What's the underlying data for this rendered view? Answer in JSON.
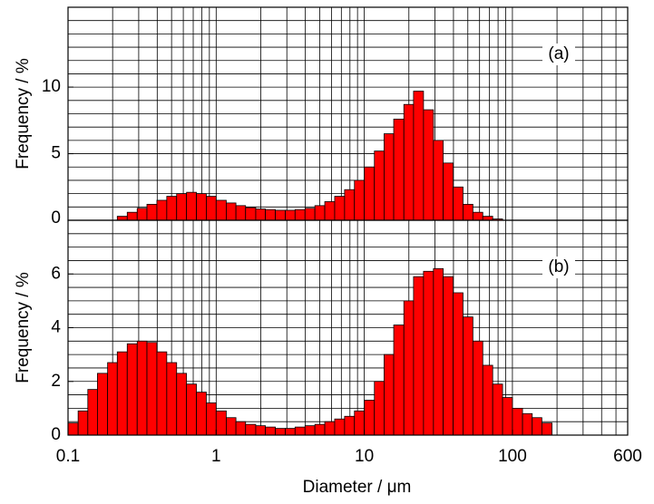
{
  "chart_data": [
    {
      "type": "histogram",
      "xscale": "log",
      "xlim": [
        0.1,
        600
      ],
      "ylim": [
        0,
        16
      ],
      "ylabel": "Frequency / %",
      "annotation": "(a)",
      "color": "#ff0000",
      "yticks": [
        0,
        5,
        10
      ],
      "ygrid": [
        1,
        2,
        3,
        4,
        5,
        6,
        7,
        8,
        9,
        10,
        11,
        12,
        13,
        14,
        15
      ],
      "xgrid": [
        0.2,
        0.3,
        0.4,
        0.5,
        0.6,
        0.7,
        0.8,
        0.9,
        1,
        2,
        3,
        4,
        5,
        6,
        7,
        8,
        9,
        10,
        20,
        30,
        40,
        50,
        60,
        70,
        80,
        90,
        100,
        200,
        300,
        400,
        500
      ],
      "bins": [
        0.1,
        0.117,
        0.136,
        0.158,
        0.185,
        0.215,
        0.251,
        0.293,
        0.341,
        0.398,
        0.464,
        0.541,
        0.631,
        0.736,
        0.858,
        1,
        1.17,
        1.36,
        1.58,
        1.85,
        2.15,
        2.51,
        2.93,
        3.41,
        3.98,
        4.64,
        5.41,
        6.31,
        7.36,
        8.58,
        10,
        11.7,
        13.6,
        15.8,
        18.5,
        21.5,
        25.1,
        29.3,
        34.1,
        39.8,
        46.4,
        54.1,
        63.1,
        73.6,
        85.8,
        100,
        117,
        136,
        158,
        185
      ],
      "values": [
        0,
        0,
        0,
        0,
        0,
        0.3,
        0.6,
        0.9,
        1.2,
        1.5,
        1.8,
        2.0,
        2.1,
        2.0,
        1.8,
        1.5,
        1.3,
        1.1,
        0.95,
        0.85,
        0.8,
        0.75,
        0.75,
        0.8,
        0.9,
        1.1,
        1.4,
        1.8,
        2.3,
        3.0,
        4.0,
        5.2,
        6.5,
        7.6,
        8.7,
        9.7,
        8.3,
        6.0,
        4.3,
        2.5,
        1.2,
        0.6,
        0.3,
        0.1,
        0,
        0,
        0,
        0,
        0
      ]
    },
    {
      "type": "histogram",
      "xscale": "log",
      "xlim": [
        0.1,
        600
      ],
      "ylim": [
        0,
        8
      ],
      "ylabel": "Frequency / %",
      "xlabel": "Diameter / μm",
      "annotation": "(b)",
      "color": "#ff0000",
      "yticks": [
        0,
        2,
        4,
        6
      ],
      "xticks": [
        0.1,
        1,
        10,
        100,
        600
      ],
      "ygrid": [
        0.5,
        1,
        1.5,
        2,
        2.5,
        3,
        3.5,
        4,
        4.5,
        5,
        5.5,
        6,
        6.5,
        7,
        7.5
      ],
      "xgrid": [
        0.2,
        0.3,
        0.4,
        0.5,
        0.6,
        0.7,
        0.8,
        0.9,
        1,
        2,
        3,
        4,
        5,
        6,
        7,
        8,
        9,
        10,
        20,
        30,
        40,
        50,
        60,
        70,
        80,
        90,
        100,
        200,
        300,
        400,
        500
      ],
      "bins": [
        0.1,
        0.117,
        0.136,
        0.158,
        0.185,
        0.215,
        0.251,
        0.293,
        0.341,
        0.398,
        0.464,
        0.541,
        0.631,
        0.736,
        0.858,
        1,
        1.17,
        1.36,
        1.58,
        1.85,
        2.15,
        2.51,
        2.93,
        3.41,
        3.98,
        4.64,
        5.41,
        6.31,
        7.36,
        8.58,
        10,
        11.7,
        13.6,
        15.8,
        18.5,
        21.5,
        25.1,
        29.3,
        34.1,
        39.8,
        46.4,
        54.1,
        63.1,
        73.6,
        85.8,
        100,
        117,
        136,
        158,
        185
      ],
      "values": [
        0.45,
        0.9,
        1.7,
        2.3,
        2.7,
        3.1,
        3.4,
        3.5,
        3.45,
        3.1,
        2.7,
        2.3,
        1.9,
        1.6,
        1.2,
        0.9,
        0.65,
        0.5,
        0.4,
        0.35,
        0.3,
        0.25,
        0.25,
        0.3,
        0.35,
        0.4,
        0.5,
        0.6,
        0.7,
        0.9,
        1.3,
        2.0,
        3.0,
        4.1,
        5.0,
        5.9,
        6.1,
        6.2,
        5.9,
        5.3,
        4.4,
        3.5,
        2.6,
        1.9,
        1.4,
        1.0,
        0.8,
        0.65,
        0.45
      ]
    }
  ]
}
